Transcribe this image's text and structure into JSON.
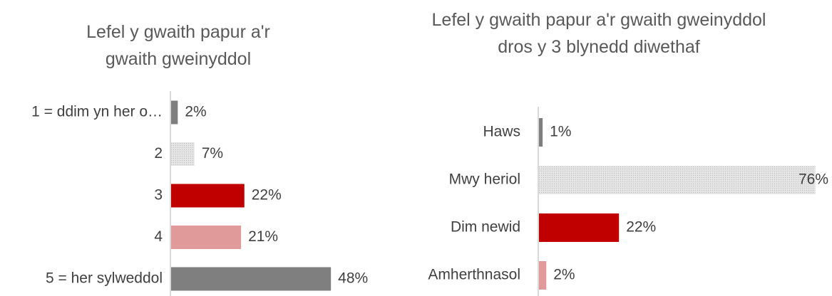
{
  "chart_data": [
    {
      "type": "bar",
      "orientation": "horizontal",
      "title": "Lefel y gwaith papur a'r gwaith gweinyddol",
      "categories": [
        "1 = ddim yn her o…",
        "2",
        "3",
        "4",
        "5 = her sylweddol"
      ],
      "values": [
        2,
        7,
        22,
        21,
        48
      ],
      "value_labels": [
        "2%",
        "7%",
        "22%",
        "21%",
        "48%"
      ],
      "colors": [
        "#7f7f7f",
        "#d9d9d9",
        "#c00000",
        "#e09a9a",
        "#7f7f7f"
      ]
    },
    {
      "type": "bar",
      "orientation": "horizontal",
      "title": "Lefel y gwaith papur a'r gwaith gweinyddol dros y 3 blynedd diwethaf",
      "categories": [
        "Haws",
        "Mwy heriol",
        "Dim newid",
        "Amherthnasol"
      ],
      "values": [
        1,
        76,
        22,
        2
      ],
      "value_labels": [
        "1%",
        "76%",
        "22%",
        "2%"
      ],
      "colors": [
        "#7f7f7f",
        "#d9d9d9",
        "#c00000",
        "#e09a9a"
      ]
    }
  ]
}
